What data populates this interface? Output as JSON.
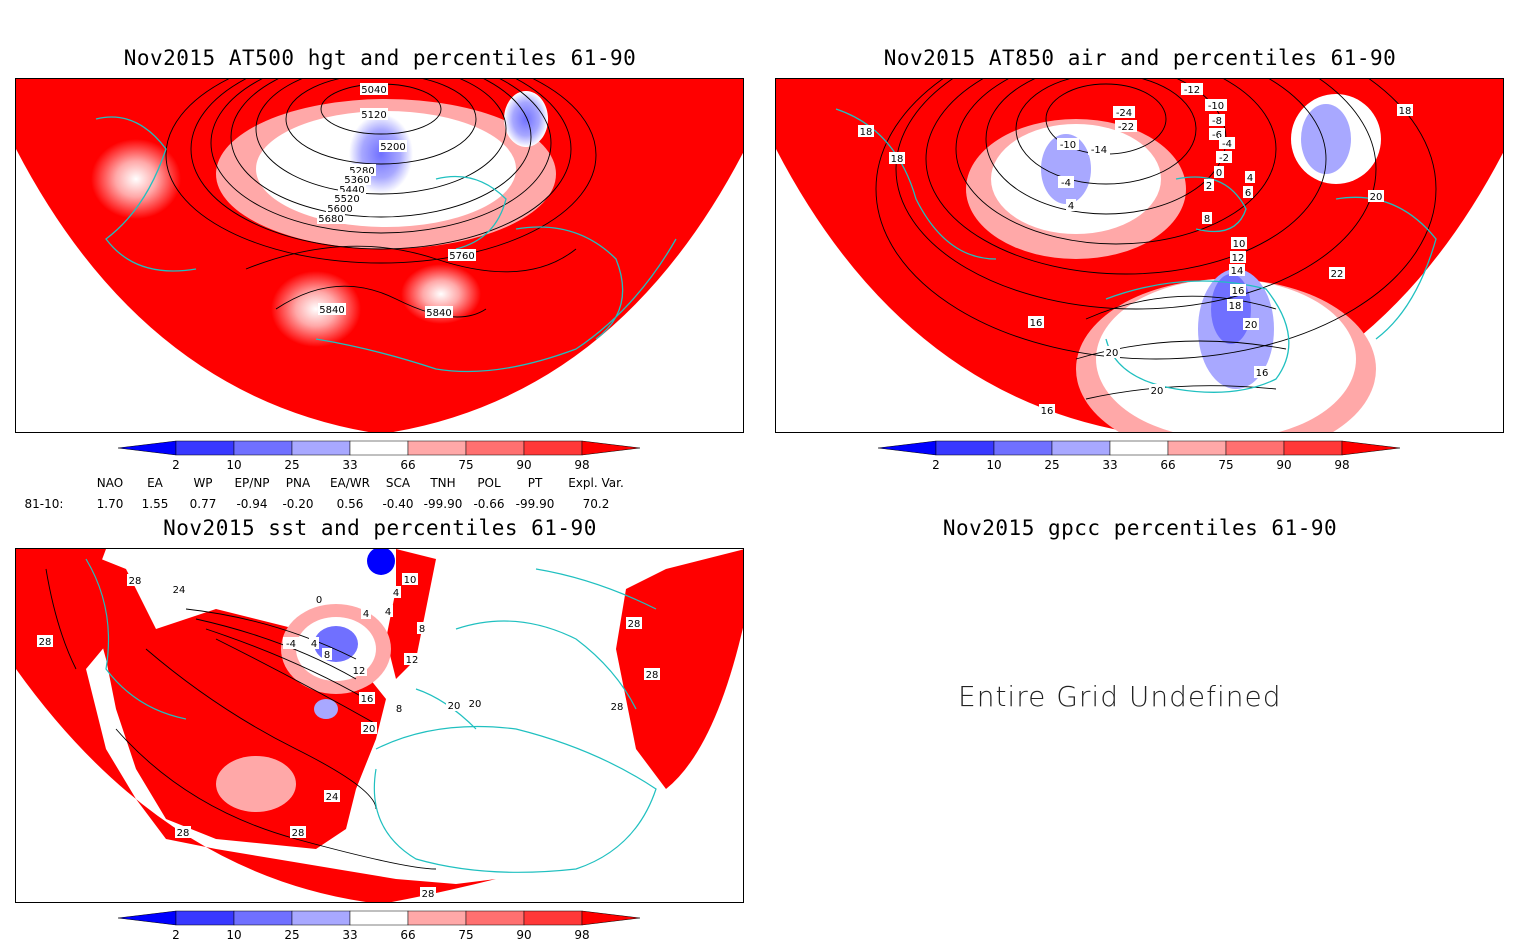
{
  "colors": {
    "red": "#ff0000",
    "deepblue": "#0000ff",
    "coast": "#20c0c0",
    "contour": "#000000"
  },
  "panels": [
    {
      "title": "Nov2015 AT500 hgt and percentiles 61-90",
      "labels": [
        "5040",
        "5120",
        "5200",
        "5280",
        "5360",
        "5440",
        "5520",
        "5600",
        "5680",
        "5760",
        "5840",
        "5840"
      ]
    },
    {
      "title": "Nov2015 AT850 air and percentiles 61-90",
      "labels": [
        "-12",
        "-10",
        "-8",
        "-6",
        "-4",
        "-2",
        "0",
        "2",
        "4",
        "6",
        "8",
        "10",
        "12",
        "14",
        "16",
        "18",
        "20",
        "22",
        "-24",
        "-22",
        "-14",
        "-10",
        "-4",
        "4",
        "16",
        "16",
        "18",
        "18",
        "18",
        "20",
        "20",
        "20",
        "16"
      ]
    },
    {
      "title": "Nov2015 sst and percentiles 61-90",
      "labels": [
        "28",
        "24",
        "28",
        "0",
        "4",
        "8",
        "12",
        "16",
        "20",
        "24",
        "28",
        "28",
        "28",
        "28",
        "20",
        "20",
        "10",
        "4",
        "12",
        "8",
        "4",
        "4",
        "-4",
        "8",
        "28",
        "28"
      ]
    },
    {
      "title": "Nov2015 gpcc percentiles 61-90",
      "undefined_text": "Entire Grid Undefined"
    }
  ],
  "colorbar": {
    "ticks": [
      "2",
      "10",
      "25",
      "33",
      "66",
      "75",
      "90",
      "98"
    ],
    "fills": [
      "#0000ff",
      "#3838ff",
      "#7070ff",
      "#a8a8ff",
      "#ffffff",
      "#ffa8a8",
      "#ff7070",
      "#ff3838",
      "#ff0000"
    ]
  },
  "indices": {
    "headers": [
      "NAO",
      "EA",
      "WP",
      "EP/NP",
      "PNA",
      "EA/WR",
      "SCA",
      "TNH",
      "POL",
      "PT",
      "Expl. Var."
    ],
    "row_label": "81-10:",
    "values": [
      "1.70",
      "1.55",
      "0.77",
      "-0.94",
      "-0.20",
      "0.56",
      "-0.40",
      "-99.90",
      "-0.66",
      "-99.90",
      "70.2"
    ]
  }
}
